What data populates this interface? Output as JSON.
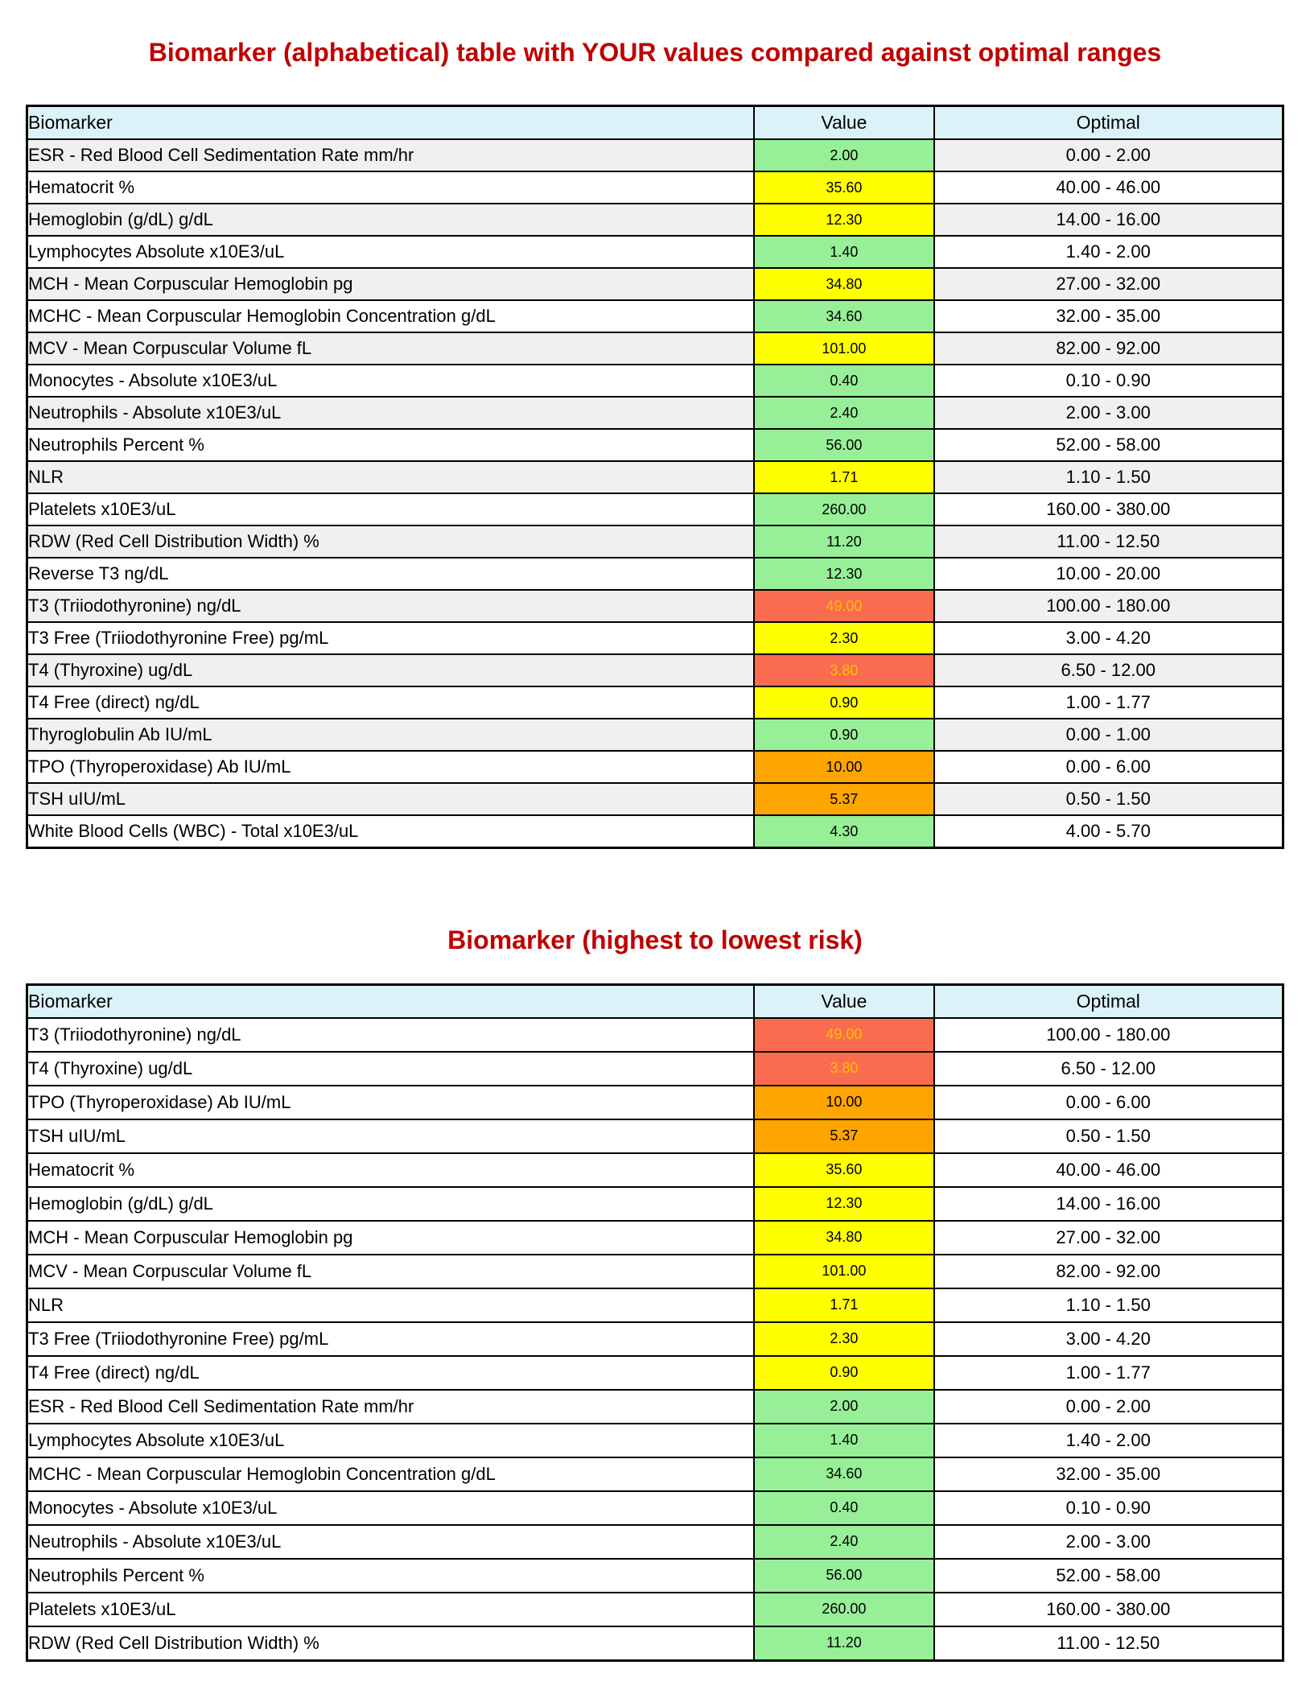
{
  "colors": {
    "title_text": "#C00000",
    "header_bg": "#DBF3F8",
    "row_alt_bg": "#F0F0F0",
    "row_bg": "#FFFFFF",
    "border": "#000000",
    "status": {
      "green": "#97EF97",
      "yellow": "#FFFF00",
      "orange": "#FFA500",
      "red": "#FA6C4F"
    },
    "status_red_text": "#FFC000"
  },
  "columns": [
    "Biomarker",
    "Value",
    "Optimal"
  ],
  "tables": [
    {
      "title": "Biomarker (alphabetical) table with YOUR values compared against optimal ranges",
      "striped": true,
      "rows": [
        {
          "biomarker": "ESR - Red Blood Cell Sedimentation Rate mm/hr",
          "value": "2.00",
          "optimal": "0.00 - 2.00",
          "status": "green"
        },
        {
          "biomarker": "Hematocrit %",
          "value": "35.60",
          "optimal": "40.00 - 46.00",
          "status": "yellow"
        },
        {
          "biomarker": "Hemoglobin (g/dL) g/dL",
          "value": "12.30",
          "optimal": "14.00 - 16.00",
          "status": "yellow"
        },
        {
          "biomarker": "Lymphocytes Absolute x10E3/uL",
          "value": "1.40",
          "optimal": "1.40 - 2.00",
          "status": "green"
        },
        {
          "biomarker": "MCH - Mean Corpuscular Hemoglobin pg",
          "value": "34.80",
          "optimal": "27.00 - 32.00",
          "status": "yellow"
        },
        {
          "biomarker": "MCHC - Mean Corpuscular Hemoglobin Concentration g/dL",
          "value": "34.60",
          "optimal": "32.00 - 35.00",
          "status": "green"
        },
        {
          "biomarker": "MCV - Mean Corpuscular Volume fL",
          "value": "101.00",
          "optimal": "82.00 - 92.00",
          "status": "yellow"
        },
        {
          "biomarker": "Monocytes - Absolute x10E3/uL",
          "value": "0.40",
          "optimal": "0.10 - 0.90",
          "status": "green"
        },
        {
          "biomarker": "Neutrophils - Absolute x10E3/uL",
          "value": "2.40",
          "optimal": "2.00 - 3.00",
          "status": "green"
        },
        {
          "biomarker": "Neutrophils Percent %",
          "value": "56.00",
          "optimal": "52.00 - 58.00",
          "status": "green"
        },
        {
          "biomarker": "NLR",
          "value": "1.71",
          "optimal": "1.10 - 1.50",
          "status": "yellow"
        },
        {
          "biomarker": "Platelets x10E3/uL",
          "value": "260.00",
          "optimal": "160.00 - 380.00",
          "status": "green"
        },
        {
          "biomarker": "RDW (Red Cell Distribution Width) %",
          "value": "11.20",
          "optimal": "11.00 - 12.50",
          "status": "green"
        },
        {
          "biomarker": "Reverse T3 ng/dL",
          "value": "12.30",
          "optimal": "10.00 - 20.00",
          "status": "green"
        },
        {
          "biomarker": "T3 (Triiodothyronine) ng/dL",
          "value": "49.00",
          "optimal": "100.00 - 180.00",
          "status": "red"
        },
        {
          "biomarker": "T3 Free (Triiodothyronine Free) pg/mL",
          "value": "2.30",
          "optimal": "3.00 - 4.20",
          "status": "yellow"
        },
        {
          "biomarker": "T4 (Thyroxine) ug/dL",
          "value": "3.80",
          "optimal": "6.50 - 12.00",
          "status": "red"
        },
        {
          "biomarker": "T4 Free (direct) ng/dL",
          "value": "0.90",
          "optimal": "1.00 - 1.77",
          "status": "yellow"
        },
        {
          "biomarker": "Thyroglobulin Ab IU/mL",
          "value": "0.90",
          "optimal": "0.00 - 1.00",
          "status": "green"
        },
        {
          "biomarker": "TPO (Thyroperoxidase) Ab IU/mL",
          "value": "10.00",
          "optimal": "0.00 - 6.00",
          "status": "orange"
        },
        {
          "biomarker": "TSH uIU/mL",
          "value": "5.37",
          "optimal": "0.50 - 1.50",
          "status": "orange"
        },
        {
          "biomarker": "White Blood Cells (WBC) - Total x10E3/uL",
          "value": "4.30",
          "optimal": "4.00 - 5.70",
          "status": "green"
        }
      ]
    },
    {
      "title": "Biomarker (highest to lowest risk)",
      "striped": false,
      "rows": [
        {
          "biomarker": "T3 (Triiodothyronine) ng/dL",
          "value": "49.00",
          "optimal": "100.00 - 180.00",
          "status": "red"
        },
        {
          "biomarker": "T4 (Thyroxine) ug/dL",
          "value": "3.80",
          "optimal": "6.50 - 12.00",
          "status": "red"
        },
        {
          "biomarker": "TPO (Thyroperoxidase) Ab IU/mL",
          "value": "10.00",
          "optimal": "0.00 - 6.00",
          "status": "orange"
        },
        {
          "biomarker": "TSH uIU/mL",
          "value": "5.37",
          "optimal": "0.50 - 1.50",
          "status": "orange"
        },
        {
          "biomarker": "Hematocrit %",
          "value": "35.60",
          "optimal": "40.00 - 46.00",
          "status": "yellow"
        },
        {
          "biomarker": "Hemoglobin (g/dL) g/dL",
          "value": "12.30",
          "optimal": "14.00 - 16.00",
          "status": "yellow"
        },
        {
          "biomarker": "MCH - Mean Corpuscular Hemoglobin pg",
          "value": "34.80",
          "optimal": "27.00 - 32.00",
          "status": "yellow"
        },
        {
          "biomarker": "MCV - Mean Corpuscular Volume fL",
          "value": "101.00",
          "optimal": "82.00 - 92.00",
          "status": "yellow"
        },
        {
          "biomarker": "NLR",
          "value": "1.71",
          "optimal": "1.10 - 1.50",
          "status": "yellow"
        },
        {
          "biomarker": "T3 Free (Triiodothyronine Free) pg/mL",
          "value": "2.30",
          "optimal": "3.00 - 4.20",
          "status": "yellow"
        },
        {
          "biomarker": "T4 Free (direct) ng/dL",
          "value": "0.90",
          "optimal": "1.00 - 1.77",
          "status": "yellow"
        },
        {
          "biomarker": "ESR - Red Blood Cell Sedimentation Rate mm/hr",
          "value": "2.00",
          "optimal": "0.00 - 2.00",
          "status": "green"
        },
        {
          "biomarker": "Lymphocytes Absolute x10E3/uL",
          "value": "1.40",
          "optimal": "1.40 - 2.00",
          "status": "green"
        },
        {
          "biomarker": "MCHC - Mean Corpuscular Hemoglobin Concentration g/dL",
          "value": "34.60",
          "optimal": "32.00 - 35.00",
          "status": "green"
        },
        {
          "biomarker": "Monocytes - Absolute x10E3/uL",
          "value": "0.40",
          "optimal": "0.10 - 0.90",
          "status": "green"
        },
        {
          "biomarker": "Neutrophils - Absolute x10E3/uL",
          "value": "2.40",
          "optimal": "2.00 - 3.00",
          "status": "green"
        },
        {
          "biomarker": "Neutrophils Percent %",
          "value": "56.00",
          "optimal": "52.00 - 58.00",
          "status": "green"
        },
        {
          "biomarker": "Platelets x10E3/uL",
          "value": "260.00",
          "optimal": "160.00 - 380.00",
          "status": "green"
        },
        {
          "biomarker": "RDW (Red Cell Distribution Width) %",
          "value": "11.20",
          "optimal": "11.00 - 12.50",
          "status": "green"
        }
      ]
    }
  ]
}
